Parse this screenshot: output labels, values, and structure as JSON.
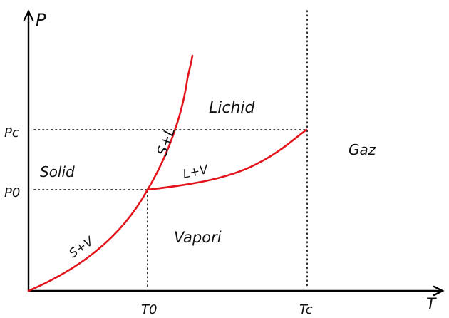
{
  "axes": {
    "x_label": "T",
    "y_label": "P"
  },
  "ticks": {
    "p_critical": "Pc",
    "p_triple": "P0",
    "t_triple": "T0",
    "t_critical": "Tc"
  },
  "regions": {
    "solid": "Solid",
    "liquid": "Lichid",
    "vapor": "Vapori",
    "gas": "Gaz"
  },
  "curves": {
    "sublimation": "S+V",
    "melting": "S+L",
    "vaporization": "L+V"
  },
  "colors": {
    "curve": "#e3141b",
    "ink": "#111111"
  }
}
